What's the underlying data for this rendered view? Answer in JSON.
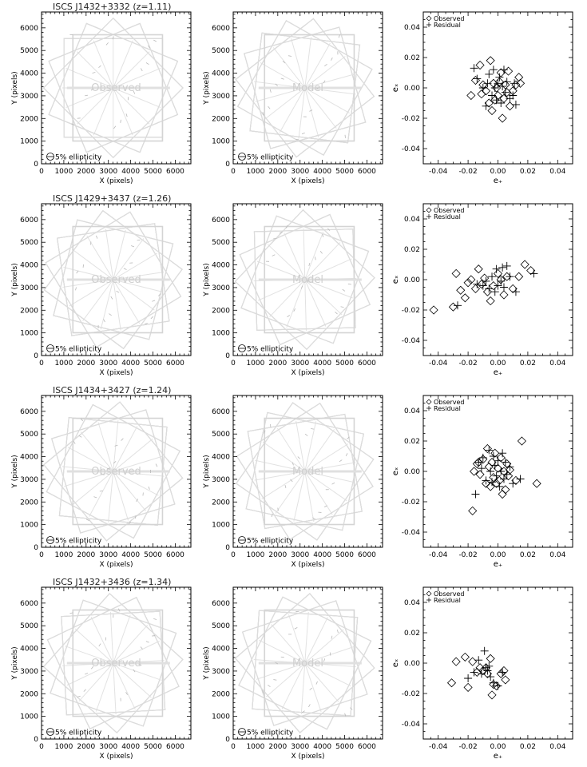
{
  "figure": {
    "rows": [
      {
        "title": "ISCS J1432+3332 (z=1.11)",
        "map_observed_label": "Observed",
        "map_model_label": "Model",
        "ellipticity_legend": "5% ellipticity",
        "observed": [
          [
            -0.018,
            -0.005
          ],
          [
            -0.015,
            0.005
          ],
          [
            -0.012,
            0.015
          ],
          [
            -0.01,
            0.002
          ],
          [
            -0.008,
            -0.002
          ],
          [
            -0.006,
            -0.01
          ],
          [
            -0.005,
            0.018
          ],
          [
            -0.004,
            -0.015
          ],
          [
            -0.003,
            0.003
          ],
          [
            -0.002,
            -0.008
          ],
          [
            -0.001,
            0.0
          ],
          [
            0.0,
            -0.005
          ],
          [
            0.001,
            0.004
          ],
          [
            0.002,
            0.01
          ],
          [
            0.003,
            -0.02
          ],
          [
            0.004,
            -0.007
          ],
          [
            0.005,
            0.002
          ],
          [
            0.006,
            -0.003
          ],
          [
            0.008,
            -0.012
          ],
          [
            0.01,
            -0.002
          ],
          [
            0.012,
            0.002
          ],
          [
            0.014,
            0.007
          ],
          [
            0.015,
            0.003
          ],
          [
            -0.011,
            -0.004
          ],
          [
            0.007,
            0.011
          ]
        ],
        "residual": [
          [
            -0.016,
            0.013
          ],
          [
            -0.014,
            0.006
          ],
          [
            -0.01,
            0.0
          ],
          [
            -0.008,
            -0.012
          ],
          [
            -0.006,
            0.009
          ],
          [
            -0.004,
            -0.005
          ],
          [
            -0.003,
            0.012
          ],
          [
            -0.002,
            0.0
          ],
          [
            -0.001,
            -0.008
          ],
          [
            0.0,
            0.003
          ],
          [
            0.001,
            0.007
          ],
          [
            0.002,
            -0.01
          ],
          [
            0.003,
            0.001
          ],
          [
            0.004,
            0.012
          ],
          [
            0.005,
            -0.003
          ],
          [
            0.006,
            0.004
          ],
          [
            0.008,
            -0.007
          ],
          [
            0.01,
            -0.005
          ],
          [
            0.012,
            -0.011
          ],
          [
            -0.007,
            0.003
          ],
          [
            0.011,
            0.003
          ]
        ]
      },
      {
        "title": "ISCS J1429+3437 (z=1.26)",
        "map_observed_label": "Observed",
        "map_model_label": "Model",
        "ellipticity_legend": "5% ellipticity",
        "observed": [
          [
            -0.043,
            -0.02
          ],
          [
            -0.03,
            -0.018
          ],
          [
            -0.028,
            0.004
          ],
          [
            -0.025,
            -0.007
          ],
          [
            -0.022,
            -0.012
          ],
          [
            -0.02,
            -0.002
          ],
          [
            -0.018,
            0.0
          ],
          [
            -0.015,
            -0.006
          ],
          [
            -0.013,
            0.007
          ],
          [
            -0.011,
            -0.003
          ],
          [
            -0.009,
            0.001
          ],
          [
            -0.007,
            -0.008
          ],
          [
            -0.005,
            -0.014
          ],
          [
            -0.003,
            -0.004
          ],
          [
            0.0,
            0.004
          ],
          [
            0.002,
            0.0
          ],
          [
            0.004,
            -0.01
          ],
          [
            0.006,
            0.002
          ],
          [
            0.01,
            -0.006
          ],
          [
            0.014,
            0.002
          ],
          [
            0.018,
            0.01
          ],
          [
            0.022,
            0.006
          ]
        ],
        "residual": [
          [
            -0.027,
            -0.017
          ],
          [
            -0.01,
            -0.004
          ],
          [
            -0.008,
            -0.001
          ],
          [
            -0.006,
            -0.006
          ],
          [
            -0.004,
            0.002
          ],
          [
            -0.002,
            -0.008
          ],
          [
            -0.001,
            0.007
          ],
          [
            0.0,
            -0.004
          ],
          [
            0.002,
            -0.001
          ],
          [
            0.003,
            0.008
          ],
          [
            0.004,
            -0.005
          ],
          [
            0.006,
            0.009
          ],
          [
            0.008,
            0.002
          ],
          [
            0.012,
            -0.008
          ],
          [
            0.024,
            0.004
          ],
          [
            -0.014,
            -0.003
          ]
        ]
      },
      {
        "title": "ISCS J1434+3427 (z=1.24)",
        "map_observed_label": "Observed",
        "map_model_label": "Model",
        "ellipticity_legend": "5% ellipticity",
        "observed": [
          [
            -0.017,
            -0.026
          ],
          [
            -0.016,
            0.0
          ],
          [
            -0.014,
            0.005
          ],
          [
            -0.012,
            -0.002
          ],
          [
            -0.01,
            0.008
          ],
          [
            -0.008,
            -0.008
          ],
          [
            -0.007,
            0.015
          ],
          [
            -0.006,
            0.003
          ],
          [
            -0.005,
            -0.01
          ],
          [
            -0.004,
            0.006
          ],
          [
            -0.003,
            -0.004
          ],
          [
            -0.002,
            0.012
          ],
          [
            -0.001,
            -0.008
          ],
          [
            0.0,
            0.002
          ],
          [
            0.001,
            -0.006
          ],
          [
            0.002,
            0.009
          ],
          [
            0.003,
            -0.015
          ],
          [
            0.004,
            0.0
          ],
          [
            0.005,
            -0.012
          ],
          [
            0.006,
            0.005
          ],
          [
            0.007,
            -0.003
          ],
          [
            0.008,
            0.001
          ],
          [
            0.012,
            -0.006
          ],
          [
            0.016,
            0.02
          ],
          [
            0.026,
            -0.008
          ],
          [
            -0.013,
            0.006
          ]
        ],
        "residual": [
          [
            -0.015,
            -0.015
          ],
          [
            -0.013,
            0.006
          ],
          [
            -0.01,
            0.009
          ],
          [
            -0.008,
            -0.006
          ],
          [
            -0.006,
            0.014
          ],
          [
            -0.005,
            0.0
          ],
          [
            -0.004,
            -0.007
          ],
          [
            -0.003,
            0.01
          ],
          [
            -0.002,
            0.004
          ],
          [
            -0.001,
            -0.003
          ],
          [
            0.0,
            0.007
          ],
          [
            0.001,
            -0.01
          ],
          [
            0.002,
            0.0
          ],
          [
            0.003,
            0.012
          ],
          [
            0.004,
            -0.005
          ],
          [
            0.005,
            0.006
          ],
          [
            0.006,
            -0.002
          ],
          [
            0.008,
            0.003
          ],
          [
            0.01,
            -0.008
          ],
          [
            0.015,
            -0.005
          ],
          [
            -0.011,
            0.002
          ]
        ]
      },
      {
        "title": "ISCS J1432+3436 (z=1.34)",
        "map_observed_label": "Observed",
        "map_model_label": "Model",
        "ellipticity_legend": "5% ellipticity",
        "observed": [
          [
            -0.031,
            -0.013
          ],
          [
            -0.028,
            0.001
          ],
          [
            -0.022,
            0.004
          ],
          [
            -0.02,
            -0.016
          ],
          [
            -0.017,
            0.001
          ],
          [
            -0.014,
            -0.006
          ],
          [
            -0.012,
            -0.003
          ],
          [
            -0.01,
            -0.005
          ],
          [
            -0.008,
            -0.003
          ],
          [
            -0.007,
            -0.007
          ],
          [
            -0.005,
            0.003
          ],
          [
            -0.004,
            -0.021
          ],
          [
            -0.003,
            -0.014
          ],
          [
            -0.001,
            -0.015
          ],
          [
            0.002,
            -0.007
          ],
          [
            0.004,
            -0.005
          ],
          [
            0.005,
            -0.011
          ]
        ],
        "residual": [
          [
            -0.02,
            -0.01
          ],
          [
            -0.016,
            -0.006
          ],
          [
            -0.013,
            0.002
          ],
          [
            -0.011,
            -0.007
          ],
          [
            -0.009,
            0.008
          ],
          [
            -0.008,
            -0.003
          ],
          [
            -0.007,
            -0.005
          ],
          [
            -0.005,
            -0.009
          ],
          [
            -0.003,
            -0.013
          ],
          [
            0.0,
            -0.015
          ],
          [
            0.003,
            -0.006
          ],
          [
            -0.006,
            -0.002
          ]
        ]
      }
    ]
  },
  "chart_data": [
    {
      "type": "scatter",
      "name": "spatial-maps",
      "xlabel": "X (pixels)",
      "ylabel": "Y (pixels)",
      "xlim": [
        0,
        6700
      ],
      "ylim": [
        0,
        6700
      ],
      "xticks": [
        "0",
        "1000",
        "2000",
        "3000",
        "4000",
        "5000",
        "6000"
      ],
      "yticks": [
        "0",
        "1000",
        "2000",
        "3000",
        "4000",
        "5000",
        "6000"
      ]
    },
    {
      "type": "scatter",
      "name": "ellipticity-scatter",
      "xlabel": "e₊",
      "ylabel": "eₓ",
      "xlim": [
        -0.05,
        0.05
      ],
      "ylim": [
        -0.05,
        0.05
      ],
      "xticks": [
        "-0.04",
        "-0.02",
        "0.00",
        "0.02",
        "0.04"
      ],
      "yticks": [
        "-0.04",
        "-0.02",
        "0.00",
        "0.02",
        "0.04"
      ],
      "legend": [
        "Observed",
        "Residual"
      ],
      "legend_position": "top-left"
    }
  ]
}
